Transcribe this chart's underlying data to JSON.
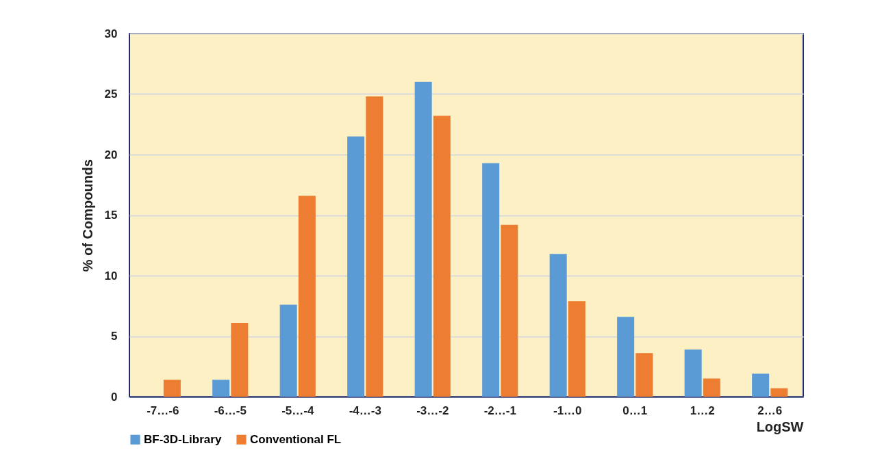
{
  "chart_data": {
    "type": "bar",
    "xlabel": "LogSW",
    "ylabel": "% of Compounds",
    "categories": [
      "-7…-6",
      "-6…-5",
      "-5…-4",
      "-4…-3",
      "-3…-2",
      "-2…-1",
      "-1…0",
      "0…1",
      "1…2",
      "2…6"
    ],
    "series": [
      {
        "name": "BF-3D-Library",
        "color": "#5b9bd5",
        "values": [
          0,
          1.4,
          7.6,
          21.5,
          26.0,
          19.3,
          11.8,
          6.6,
          3.9,
          1.9
        ]
      },
      {
        "name": "Conventional FL",
        "color": "#ed7d31",
        "values": [
          1.4,
          6.1,
          16.6,
          24.8,
          23.2,
          14.2,
          7.9,
          3.6,
          1.5,
          0.7
        ]
      }
    ],
    "ylim": [
      0,
      30
    ],
    "yticks": [
      0,
      5,
      10,
      15,
      20,
      25,
      30
    ],
    "grid": "y",
    "legend": "bottom"
  }
}
